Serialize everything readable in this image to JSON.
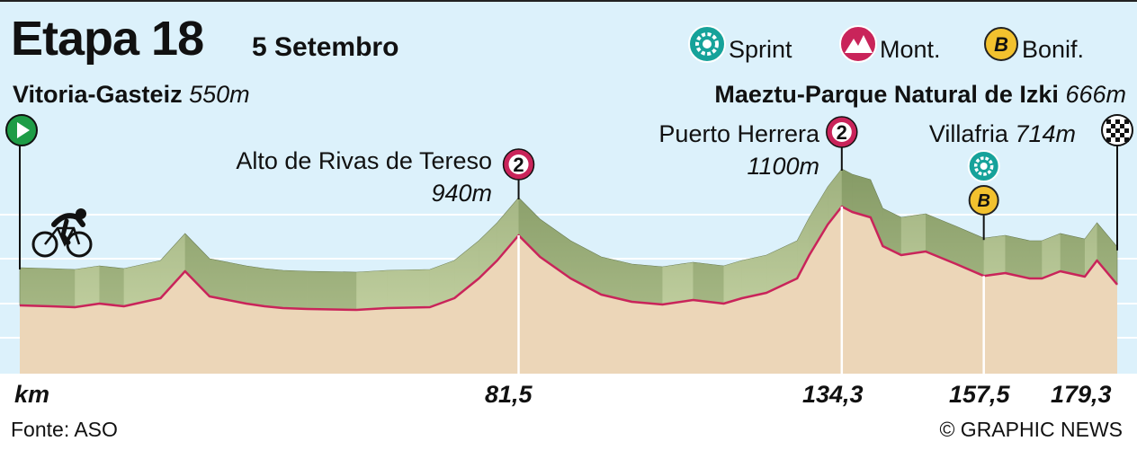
{
  "title": "Etapa 18",
  "date": "5 Setembro",
  "legend": [
    {
      "icon": "sprint-icon",
      "label": "Sprint"
    },
    {
      "icon": "mountain-icon",
      "label": "Mont."
    },
    {
      "icon": "bonus-icon",
      "label": "Bonif.",
      "symbol": "B"
    }
  ],
  "start": {
    "name": "Vitoria-Gasteiz",
    "altitude": "550m"
  },
  "finish": {
    "name": "Maeztu-Parque Natural de Izki",
    "altitude": "666m"
  },
  "climbs": [
    {
      "name": "Alto de Rivas de Tereso",
      "altitude": "940m",
      "category": "2",
      "km": "81,5"
    },
    {
      "name": "Puerto Herrera",
      "altitude": "1100m",
      "category": "2",
      "km": "134,3"
    }
  ],
  "sprint": {
    "name": "Villafria",
    "altitude": "714m",
    "km": "157,5",
    "bonus": "B"
  },
  "km_axis": {
    "label": "km",
    "ticks": [
      "81,5",
      "134,3",
      "157,5",
      "179,3"
    ]
  },
  "source": "Fonte: ASO",
  "credit": "© GRAPHIC NEWS",
  "colors": {
    "profile_fill": "#ecd6b8",
    "profile_line": "#c9245a",
    "side_face": "#a3b57a",
    "sky": "#dcf1fb",
    "mountain_badge": "#c9245a",
    "sprint_badge": "#16a29a",
    "bonus_badge": "#f2c12e",
    "start_badge": "#1e9c46"
  },
  "chart_data": {
    "type": "area",
    "title": "Etapa 18",
    "xlabel": "km",
    "ylabel": "",
    "x_unit": "km",
    "y_unit": "m",
    "xlim": [
      0,
      179.3
    ],
    "x_ticks": [
      81.5,
      134.3,
      157.5,
      179.3
    ],
    "series": [
      {
        "x": [
          0,
          5,
          9,
          13,
          17,
          23,
          27,
          31,
          37,
          40,
          43,
          47,
          55,
          60,
          67,
          71,
          75,
          78,
          81.5,
          85,
          90,
          95,
          100,
          105,
          110,
          115,
          118,
          122,
          127,
          129,
          132,
          134.3,
          136,
          139,
          141,
          144,
          148,
          153,
          157.5,
          161,
          165,
          167,
          170,
          174,
          176,
          179.3
        ],
        "y": [
          550,
          545,
          540,
          560,
          545,
          590,
          740,
          600,
          560,
          545,
          535,
          530,
          525,
          535,
          540,
          590,
          700,
          800,
          940,
          820,
          700,
          610,
          570,
          555,
          580,
          560,
          590,
          620,
          700,
          830,
          1000,
          1100,
          1070,
          1040,
          880,
          830,
          850,
          780,
          714,
          730,
          700,
          700,
          740,
          710,
          800,
          666
        ]
      }
    ],
    "points": [
      {
        "name": "Vitoria-Gasteiz",
        "km": 0,
        "altitude": 550
      },
      {
        "name": "Alto de Rivas de Tereso",
        "km": 81.5,
        "altitude": 940
      },
      {
        "name": "Puerto Herrera",
        "km": 134.3,
        "altitude": 1100
      },
      {
        "name": "Villafria",
        "km": 157.5,
        "altitude": 714
      },
      {
        "name": "Maeztu-Parque Natural de Izki",
        "km": 179.3,
        "altitude": 666
      }
    ]
  }
}
